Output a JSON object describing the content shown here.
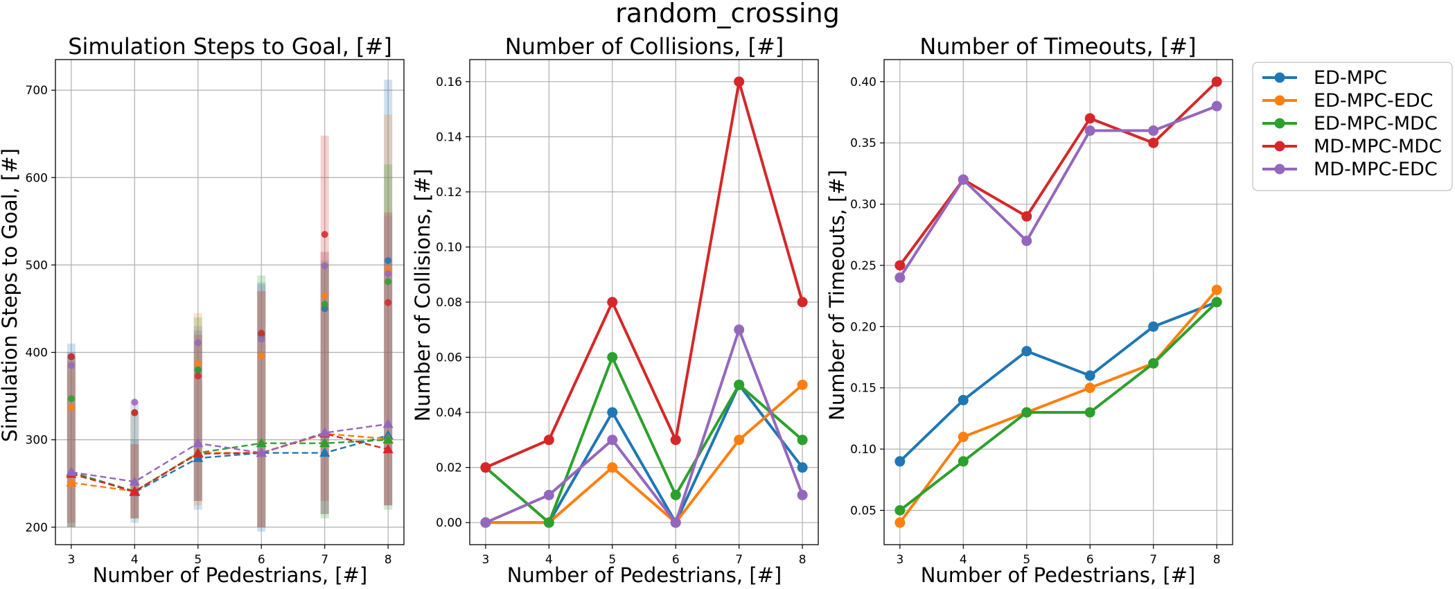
{
  "figure": {
    "suptitle": "random_crossing",
    "legend": {
      "placement": "outside-right-top",
      "entries": [
        "ED-MPC",
        "ED-MPC-EDC",
        "ED-MPC-MDC",
        "MD-MPC-MDC",
        "MD-MPC-EDC"
      ]
    },
    "colors": {
      "ED-MPC": "#1f77b4",
      "ED-MPC-EDC": "#ff7f0e",
      "ED-MPC-MDC": "#2ca02c",
      "MD-MPC-MDC": "#d62728",
      "MD-MPC-EDC": "#9467bd"
    }
  },
  "chart_data": [
    {
      "type": "line",
      "title": "Simulation Steps to Goal, [#]",
      "xlabel": "Number of Pedestrians, [#]",
      "ylabel": "Simulation Steps to Goal, [#]",
      "x": [
        3,
        4,
        5,
        6,
        7,
        8
      ],
      "xlim": [
        2.75,
        8.25
      ],
      "ylim": [
        180,
        735
      ],
      "yticks": [
        200,
        300,
        400,
        500,
        600,
        700
      ],
      "ytick_labels": [
        "200",
        "300",
        "400",
        "500",
        "600",
        "700"
      ],
      "grid": true,
      "line_style": "dashed",
      "marker": "triangle",
      "series": [
        {
          "name": "ED-MPC",
          "values": [
            263,
            240,
            279,
            285,
            285,
            305
          ],
          "max_points": [
            395,
            331,
            380,
            420,
            450,
            505
          ],
          "ranges": [
            [
              200,
              410
            ],
            [
              205,
              300
            ],
            [
              220,
              425
            ],
            [
              195,
              480
            ],
            [
              215,
              500
            ],
            [
              225,
              712
            ]
          ]
        },
        {
          "name": "ED-MPC-EDC",
          "values": [
            251,
            241,
            285,
            285,
            307,
            301
          ],
          "max_points": [
            337,
            331,
            387,
            396,
            465,
            495
          ],
          "ranges": [
            [
              200,
              390
            ],
            [
              210,
              295
            ],
            [
              225,
              445
            ],
            [
              200,
              470
            ],
            [
              215,
              515
            ],
            [
              225,
              672
            ]
          ]
        },
        {
          "name": "ED-MPC-MDC",
          "values": [
            263,
            241,
            285,
            296,
            296,
            300
          ],
          "max_points": [
            347,
            331,
            380,
            420,
            455,
            481
          ],
          "ranges": [
            [
              200,
              395
            ],
            [
              210,
              330
            ],
            [
              230,
              440
            ],
            [
              200,
              488
            ],
            [
              210,
              505
            ],
            [
              220,
              615
            ]
          ]
        },
        {
          "name": "MD-MPC-MDC",
          "values": [
            261,
            241,
            284,
            285,
            307,
            289
          ],
          "max_points": [
            395,
            331,
            373,
            422,
            535,
            457
          ],
          "ranges": [
            [
              205,
              400
            ],
            [
              210,
              295
            ],
            [
              230,
              420
            ],
            [
              200,
              470
            ],
            [
              230,
              648
            ],
            [
              225,
              560
            ]
          ]
        },
        {
          "name": "MD-MPC-EDC",
          "values": [
            263,
            252,
            296,
            285,
            308,
            318
          ],
          "max_points": [
            385,
            343,
            411,
            415,
            499,
            490
          ],
          "ranges": [
            [
              200,
              398
            ],
            [
              210,
              345
            ],
            [
              230,
              430
            ],
            [
              200,
              478
            ],
            [
              215,
              515
            ],
            [
              225,
              556
            ]
          ]
        }
      ]
    },
    {
      "type": "line",
      "title": "Number of Collisions, [#]",
      "xlabel": "Number of Pedestrians, [#]",
      "ylabel": "Number of Collisions, [#]",
      "x": [
        3,
        4,
        5,
        6,
        7,
        8
      ],
      "xlim": [
        2.75,
        8.25
      ],
      "ylim": [
        -0.008,
        0.168
      ],
      "yticks": [
        0,
        0.02,
        0.04,
        0.06,
        0.08,
        0.1,
        0.12,
        0.14,
        0.16
      ],
      "ytick_labels": [
        "0.00",
        "0.02",
        "0.04",
        "0.06",
        "0.08",
        "0.10",
        "0.12",
        "0.14",
        "0.16"
      ],
      "grid": true,
      "line_style": "solid",
      "marker": "circle",
      "series": [
        {
          "name": "ED-MPC",
          "values": [
            0.0,
            0.0,
            0.04,
            0.0,
            0.05,
            0.02
          ]
        },
        {
          "name": "ED-MPC-EDC",
          "values": [
            0.0,
            0.0,
            0.02,
            0.0,
            0.03,
            0.05
          ]
        },
        {
          "name": "ED-MPC-MDC",
          "values": [
            0.02,
            0.0,
            0.06,
            0.01,
            0.05,
            0.03
          ]
        },
        {
          "name": "MD-MPC-MDC",
          "values": [
            0.02,
            0.03,
            0.08,
            0.03,
            0.16,
            0.08
          ]
        },
        {
          "name": "MD-MPC-EDC",
          "values": [
            0.0,
            0.01,
            0.03,
            0.0,
            0.07,
            0.01
          ]
        }
      ]
    },
    {
      "type": "line",
      "title": "Number of Timeouts, [#]",
      "xlabel": "Number of Pedestrians, [#]",
      "ylabel": "Number of Timeouts, [#]",
      "x": [
        3,
        4,
        5,
        6,
        7,
        8
      ],
      "xlim": [
        2.75,
        8.25
      ],
      "ylim": [
        0.022,
        0.418
      ],
      "yticks": [
        0.05,
        0.1,
        0.15,
        0.2,
        0.25,
        0.3,
        0.35,
        0.4
      ],
      "ytick_labels": [
        "0.05",
        "0.10",
        "0.15",
        "0.20",
        "0.25",
        "0.30",
        "0.35",
        "0.40"
      ],
      "grid": true,
      "line_style": "solid",
      "marker": "circle",
      "series": [
        {
          "name": "ED-MPC",
          "values": [
            0.09,
            0.14,
            0.18,
            0.16,
            0.2,
            0.22
          ]
        },
        {
          "name": "ED-MPC-EDC",
          "values": [
            0.04,
            0.11,
            0.13,
            0.15,
            0.17,
            0.23
          ]
        },
        {
          "name": "ED-MPC-MDC",
          "values": [
            0.05,
            0.09,
            0.13,
            0.13,
            0.17,
            0.22
          ]
        },
        {
          "name": "MD-MPC-MDC",
          "values": [
            0.25,
            0.32,
            0.29,
            0.37,
            0.35,
            0.4
          ]
        },
        {
          "name": "MD-MPC-EDC",
          "values": [
            0.24,
            0.32,
            0.27,
            0.36,
            0.36,
            0.38
          ]
        }
      ]
    }
  ]
}
